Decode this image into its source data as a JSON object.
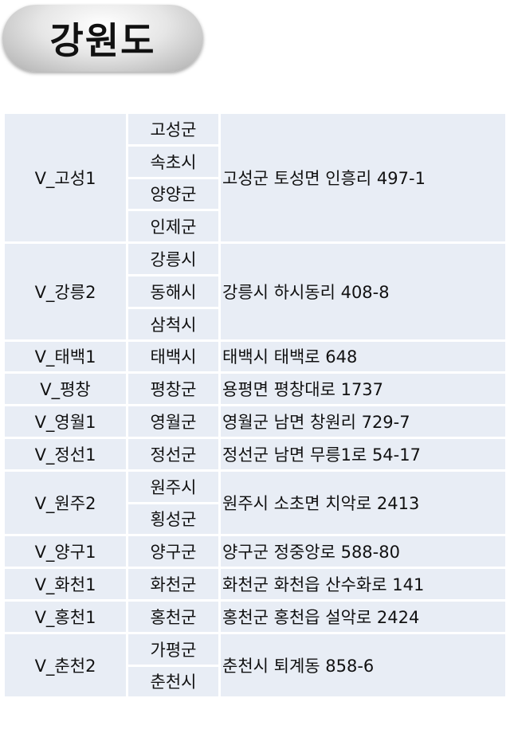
{
  "title": "강원도",
  "rows": [
    {
      "name": "V_고성1",
      "regions": [
        "고성군",
        "속초시",
        "양양군",
        "인제군"
      ],
      "address": "고성군 토성면 인흥리 497-1"
    },
    {
      "name": "V_강릉2",
      "regions": [
        "강릉시",
        "동해시",
        "삼척시"
      ],
      "address": "강릉시 하시동리 408-8"
    },
    {
      "name": "V_태백1",
      "regions": [
        "태백시"
      ],
      "address": "태백시 태백로 648"
    },
    {
      "name": "V_평창",
      "regions": [
        "평창군"
      ],
      "address": "용평면 평창대로 1737"
    },
    {
      "name": "V_영월1",
      "regions": [
        "영월군"
      ],
      "address": "영월군 남면 창원리 729-7"
    },
    {
      "name": "V_정선1",
      "regions": [
        "정선군"
      ],
      "address": "정선군 남면 무릉1로 54-17"
    },
    {
      "name": "V_원주2",
      "regions": [
        "원주시",
        "횡성군"
      ],
      "address": "원주시 소초면 치악로 2413"
    },
    {
      "name": "V_양구1",
      "regions": [
        "양구군"
      ],
      "address": "양구군 정중앙로 588-80"
    },
    {
      "name": "V_화천1",
      "regions": [
        "화천군"
      ],
      "address": "화천군 화천읍 산수화로 141"
    },
    {
      "name": "V_홍천1",
      "regions": [
        "홍천군"
      ],
      "address": "홍천군 홍천읍 설악로 2424"
    },
    {
      "name": "V_춘천2",
      "regions": [
        "가평군",
        "춘천시"
      ],
      "address": "춘천시 퇴계동 858-6"
    }
  ]
}
